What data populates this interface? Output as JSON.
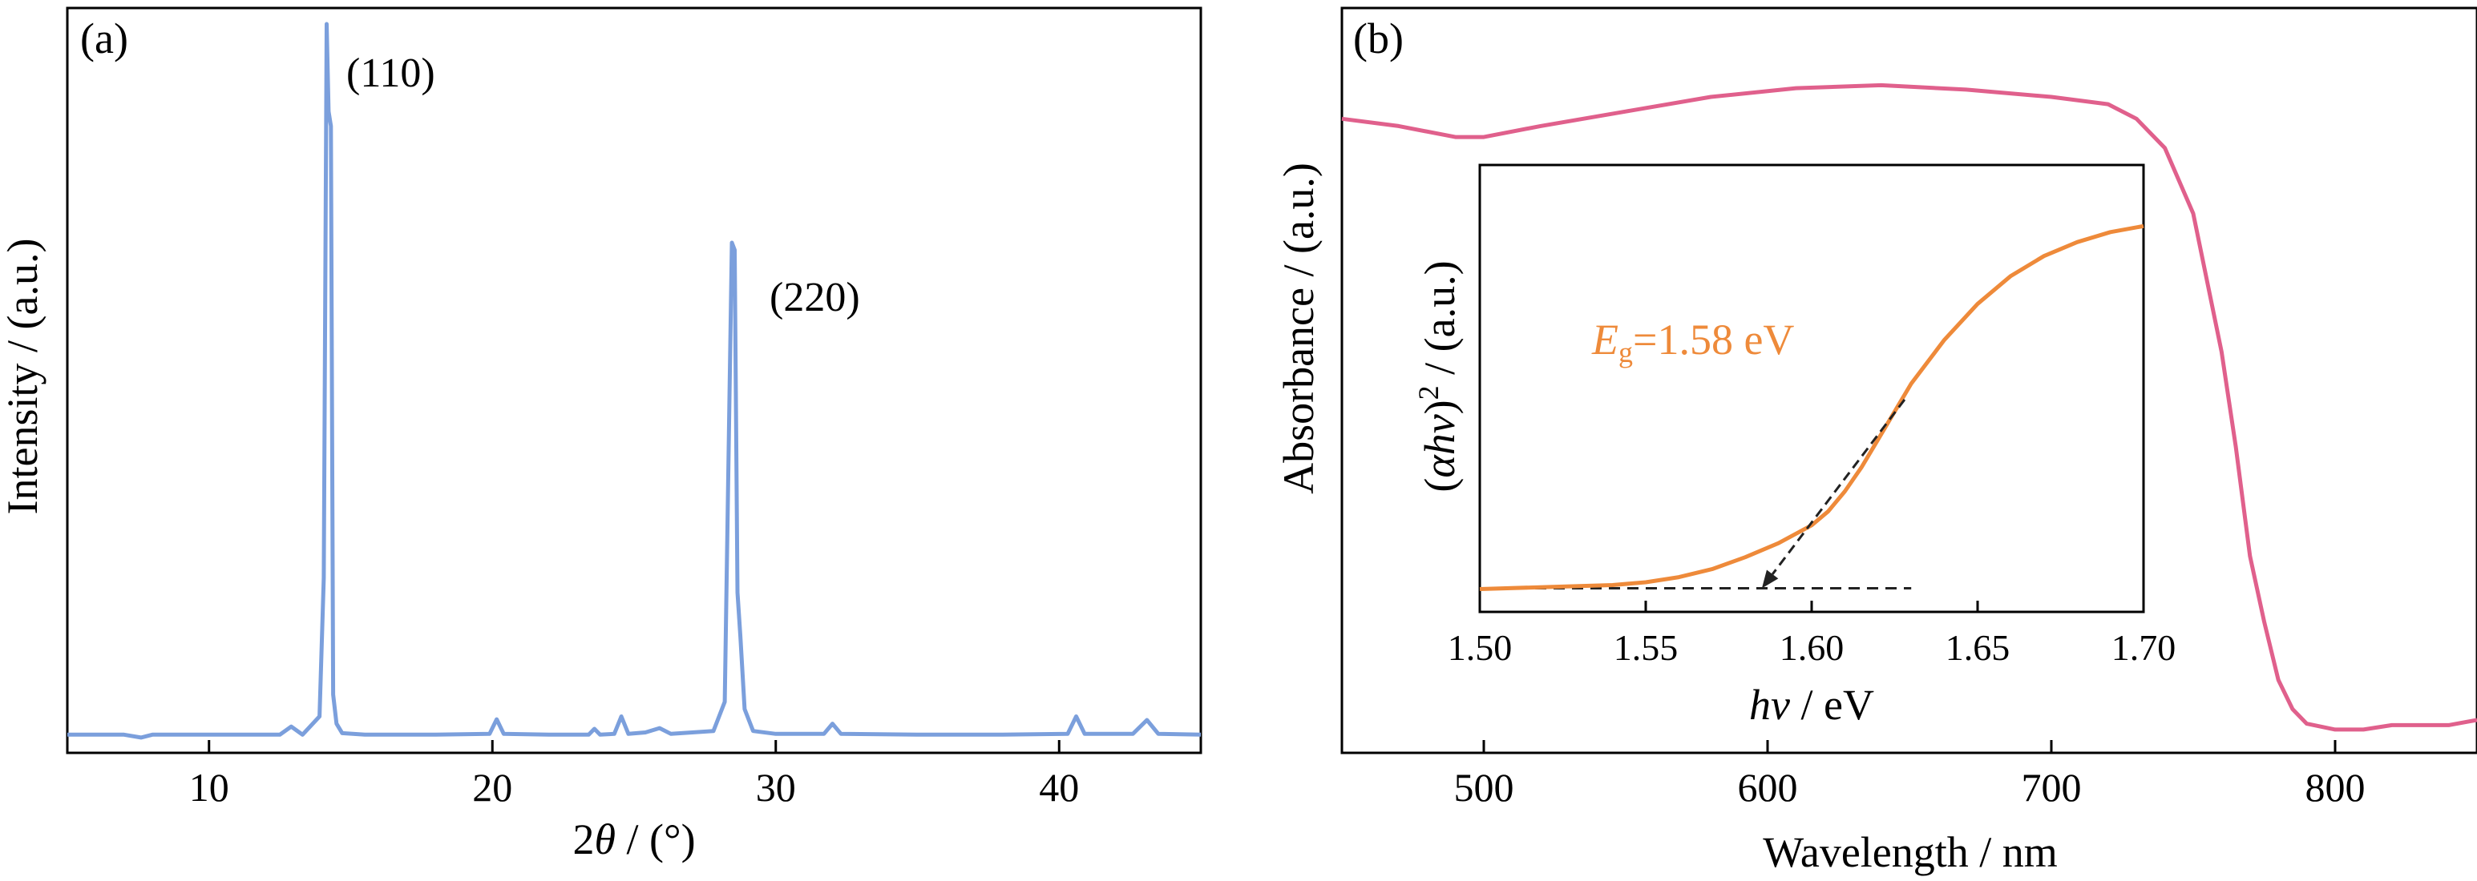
{
  "colors": {
    "xrd_line": "#7b9fdc",
    "absorbance_line": "#e0608c",
    "tauc_line": "#ee8a3a",
    "eg_text": "#ee8a3a",
    "axes": "#000000"
  },
  "panel_a": {
    "panel_label": "(a)",
    "ylabel": "Intensity / (a.u.)",
    "xlabel_theta": "θ",
    "xlabel_prefix": "2",
    "xlabel_suffix": " / (°)",
    "peaks": [
      {
        "label": "(110)"
      },
      {
        "label": "(220)"
      }
    ]
  },
  "panel_b": {
    "panel_label": "(b)",
    "ylabel": "Absorbance / (a.u.)",
    "xlabel": "Wavelength / nm",
    "inset": {
      "ylabel_open": "(",
      "ylabel_var": "αhν",
      "ylabel_close": ")",
      "ylabel_sup": "2",
      "ylabel_unit": " / (a.u.)",
      "xlabel_var": "hν",
      "xlabel_unit": " / eV",
      "eg_symbol": "E",
      "eg_sub": "g",
      "eg_value": "=1.58 eV"
    }
  },
  "chart_data": [
    {
      "type": "line",
      "panel": "(a)",
      "xlabel": "2θ / (°)",
      "ylabel": "Intensity / (a.u.)",
      "xlim": [
        5,
        45
      ],
      "ylim": [
        0,
        100
      ],
      "xticks": [
        10,
        20,
        30,
        40
      ],
      "yticks": [],
      "grid": false,
      "annotations": [
        {
          "text": "(110)",
          "x": 14.2
        },
        {
          "text": "(220)",
          "x": 28.6
        }
      ],
      "series": [
        {
          "x": [
            5,
            7,
            7.6,
            8,
            10,
            12.5,
            12.9,
            13.3,
            13.9,
            14.05,
            14.15,
            14.22,
            14.3,
            14.38,
            14.5,
            14.7,
            15.5,
            18,
            19.9,
            20.15,
            20.4,
            22,
            23.4,
            23.6,
            23.8,
            24.3,
            24.55,
            24.8,
            25.4,
            25.9,
            26.3,
            27.8,
            28.2,
            28.45,
            28.55,
            28.65,
            28.75,
            28.9,
            29.2,
            30,
            31.7,
            32.0,
            32.3,
            35,
            38,
            40.3,
            40.6,
            40.9,
            42.6,
            43.1,
            43.5,
            45
          ],
          "y": [
            2.5,
            2.5,
            2.1,
            2.5,
            2.5,
            2.5,
            3.6,
            2.5,
            5,
            24,
            100,
            88,
            86,
            8,
            4,
            2.7,
            2.5,
            2.5,
            2.6,
            4.6,
            2.6,
            2.5,
            2.5,
            3.3,
            2.5,
            2.6,
            5.0,
            2.6,
            2.8,
            3.4,
            2.6,
            3.0,
            7.0,
            70,
            69,
            22,
            16,
            6,
            3.0,
            2.6,
            2.6,
            4.0,
            2.6,
            2.5,
            2.5,
            2.6,
            5.0,
            2.6,
            2.6,
            4.5,
            2.6,
            2.5
          ]
        }
      ]
    },
    {
      "type": "line",
      "panel": "(b)",
      "xlabel": "Wavelength / nm",
      "ylabel": "Absorbance / (a.u.)",
      "xlim": [
        450,
        850
      ],
      "ylim": [
        0,
        100
      ],
      "xticks": [
        500,
        600,
        700,
        800
      ],
      "yticks": [],
      "grid": false,
      "series": [
        {
          "x": [
            450,
            470,
            490,
            500,
            520,
            550,
            580,
            610,
            640,
            670,
            700,
            720,
            730,
            740,
            750,
            760,
            765,
            770,
            775,
            780,
            785,
            790,
            800,
            810,
            820,
            840,
            850
          ],
          "y": [
            87,
            86,
            84.5,
            84.5,
            86,
            88,
            90,
            91.2,
            91.6,
            91,
            90,
            89,
            87,
            83,
            74,
            55,
            42,
            27,
            18,
            10,
            6,
            4,
            3.2,
            3.2,
            3.8,
            3.8,
            4.5
          ]
        }
      ]
    },
    {
      "type": "line",
      "panel": "(b) inset",
      "xlabel": "hν / eV",
      "ylabel": "(αhν)² / (a.u.)",
      "xlim": [
        1.5,
        1.7
      ],
      "ylim": [
        0,
        100
      ],
      "xticks": [
        1.5,
        1.55,
        1.6,
        1.65,
        1.7
      ],
      "yticks": [],
      "grid": false,
      "annotations": [
        {
          "text": "Eg=1.58 eV"
        }
      ],
      "series": [
        {
          "x": [
            1.5,
            1.52,
            1.54,
            1.55,
            1.56,
            1.57,
            1.58,
            1.59,
            1.6,
            1.605,
            1.61,
            1.615,
            1.62,
            1.625,
            1.63,
            1.64,
            1.65,
            1.66,
            1.67,
            1.68,
            1.69,
            1.7
          ],
          "y": [
            0.5,
            1,
            1.5,
            2.2,
            3.5,
            5.5,
            8.5,
            12,
            16.5,
            20,
            25,
            31,
            38,
            45,
            52,
            63,
            72,
            79,
            84,
            87.5,
            90,
            91.5
          ]
        }
      ],
      "guides": {
        "baseline": {
          "x": [
            1.5,
            1.63
          ],
          "y": 0.7
        },
        "tangent": {
          "x": [
            1.628,
            1.585
          ],
          "y": [
            48,
            0.7
          ]
        }
      }
    }
  ]
}
